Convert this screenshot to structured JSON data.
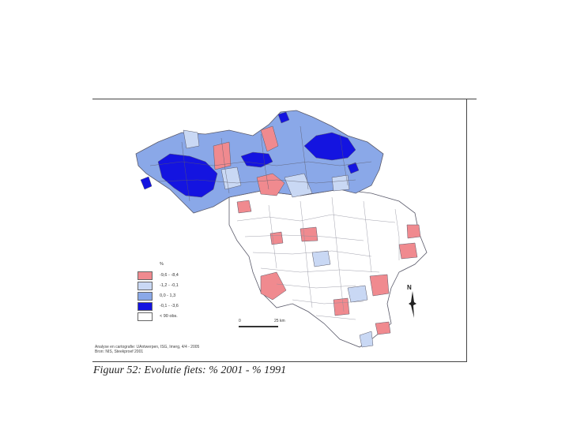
{
  "colors": {
    "pink": "#f08a8f",
    "light": "#c9d8f4",
    "mid": "#8aa8e8",
    "dark": "#1414e0",
    "white": "#ffffff",
    "border": "#5a5a6a"
  },
  "legend": {
    "title": "%",
    "items": [
      {
        "label": "-9,6 - -8,4",
        "color": "#f08a8f"
      },
      {
        "label": "-1,2 - -0,1",
        "color": "#c9d8f4"
      },
      {
        "label": "0,0 - 1,3",
        "color": "#8aa8e8"
      },
      {
        "label": "-0,1 - -3,6",
        "color": "#1414e0"
      },
      {
        "label": "< 90 obs.",
        "color": "#ffffff"
      }
    ]
  },
  "scale": {
    "left": "0",
    "right": "25 km"
  },
  "north_label": "N",
  "source": {
    "line1": "Analyse en cartografie: UAntwerpen, ISG, Imerg, 4/4 - 2005",
    "line2": "Bron: NIS, Steekproef 2001"
  },
  "caption": "Figuur 52: Evolutie fiets: % 2001 - % 1991"
}
